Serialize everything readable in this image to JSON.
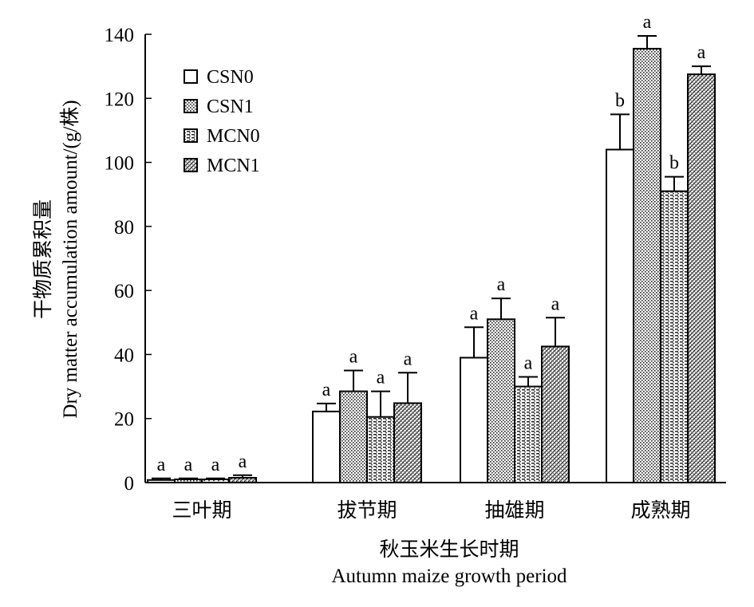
{
  "chart_data": {
    "type": "bar",
    "categories": [
      "三叶期",
      "拔节期",
      "抽雄期",
      "成熟期"
    ],
    "series": [
      {
        "name": "CSN0",
        "values": [
          0.8,
          22.2,
          39.0,
          104.0
        ],
        "errors": [
          0.5,
          2.5,
          9.5,
          11.0
        ],
        "labels": [
          "a",
          "a",
          "a",
          "b"
        ],
        "pattern": "white"
      },
      {
        "name": "CSN1",
        "values": [
          1.0,
          28.5,
          51.0,
          135.5
        ],
        "errors": [
          0.3,
          6.5,
          6.5,
          4.0
        ],
        "labels": [
          "a",
          "a",
          "a",
          "a"
        ],
        "pattern": "dots"
      },
      {
        "name": "MCN0",
        "values": [
          1.0,
          20.5,
          30.0,
          91.0
        ],
        "errors": [
          0.3,
          8.0,
          3.0,
          4.5
        ],
        "labels": [
          "a",
          "a",
          "a",
          "b"
        ],
        "pattern": "hlines"
      },
      {
        "name": "MCN1",
        "values": [
          1.5,
          24.8,
          42.5,
          127.5
        ],
        "errors": [
          0.8,
          9.5,
          9.0,
          2.5
        ],
        "labels": [
          "a",
          "a",
          "a",
          "a"
        ],
        "pattern": "cross"
      }
    ],
    "yticks": [
      0,
      20,
      40,
      60,
      80,
      100,
      120,
      140
    ],
    "ylim": [
      0,
      140
    ],
    "ylabel_cn": "干物质累积量",
    "ylabel_en": "Dry matter accumulation amount/(g/株)",
    "xlabel_cn": "秋玉米生长时期",
    "xlabel_en": "Autumn maize growth period",
    "legend_position": "top-left",
    "grid": false
  }
}
